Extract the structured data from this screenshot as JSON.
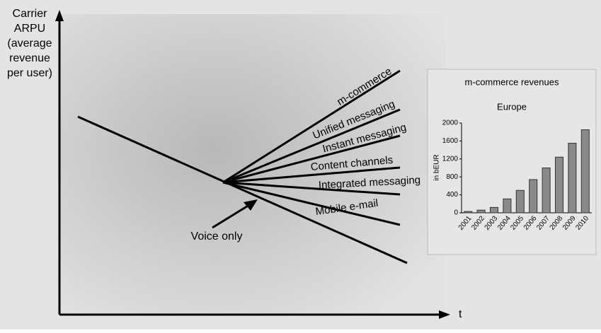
{
  "diagram": {
    "y_axis_label": [
      "Carrier",
      "ARPU",
      "(average",
      "revenue",
      "per user)"
    ],
    "x_axis_label": "t",
    "trend_labels": [
      "m-commerce",
      "Unified messaging",
      "Instant messaging",
      "Content channels",
      "Integrated messaging",
      "Mobile e-mail"
    ],
    "voice_label": "Voice only"
  },
  "chart_data": {
    "type": "bar",
    "title": "m-commerce revenues",
    "subtitle": "Europe",
    "y_label": "in bEUR",
    "categories": [
      "2001",
      "2002",
      "2003",
      "2004",
      "2005",
      "2006",
      "2007",
      "2008",
      "2009",
      "2010"
    ],
    "values": [
      30,
      60,
      120,
      310,
      500,
      740,
      1000,
      1240,
      1550,
      1850
    ],
    "color": "#8a8a8a",
    "ylim": [
      0,
      2000
    ],
    "yticks": [
      0,
      400,
      800,
      1200,
      1600,
      2000
    ]
  }
}
